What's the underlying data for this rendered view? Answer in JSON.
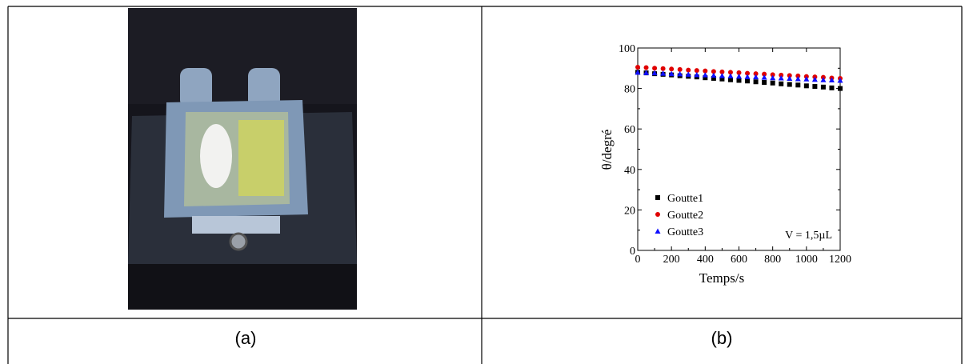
{
  "table": {
    "captions": [
      "(a)",
      "(b)"
    ]
  },
  "chart_data": {
    "type": "scatter",
    "xlabel": "Temps/s",
    "ylabel": "θ/degré",
    "annotation": "V = 1,5µL",
    "xlim": [
      0,
      1200
    ],
    "xticks": [
      0,
      200,
      400,
      600,
      800,
      1000,
      1200
    ],
    "ylim": [
      0,
      100
    ],
    "yticks": [
      0,
      20,
      40,
      60,
      80,
      100
    ],
    "legend": "lower left",
    "x": [
      0,
      50,
      100,
      150,
      200,
      250,
      300,
      350,
      400,
      450,
      500,
      550,
      600,
      650,
      700,
      750,
      800,
      850,
      900,
      950,
      1000,
      1050,
      1100,
      1150,
      1200
    ],
    "series": [
      {
        "name": "Goutte1",
        "color": "#000000",
        "marker": "square",
        "values": [
          88,
          87.7,
          87.3,
          87,
          86.7,
          86.3,
          86,
          85.7,
          85.3,
          85,
          84.7,
          84.3,
          84,
          83.7,
          83.3,
          83,
          82.7,
          82.3,
          82,
          81.7,
          81.3,
          81,
          80.7,
          80.3,
          80
        ]
      },
      {
        "name": "Goutte2",
        "color": "#e00000",
        "marker": "circle",
        "values": [
          90.5,
          90.3,
          90,
          89.8,
          89.6,
          89.4,
          89.1,
          88.9,
          88.7,
          88.4,
          88.2,
          88,
          87.8,
          87.5,
          87.3,
          87.1,
          86.8,
          86.6,
          86.4,
          86.2,
          85.9,
          85.7,
          85.5,
          85.2,
          85
        ]
      },
      {
        "name": "Goutte3",
        "color": "#1010ff",
        "marker": "triangle",
        "values": [
          88,
          87.8,
          87.7,
          87.5,
          87.3,
          87.2,
          87,
          86.8,
          86.7,
          86.5,
          86.3,
          86.2,
          86,
          85.8,
          85.7,
          85.5,
          85.3,
          85.2,
          85,
          84.8,
          84.7,
          84.5,
          84.3,
          84.2,
          84
        ]
      }
    ]
  }
}
